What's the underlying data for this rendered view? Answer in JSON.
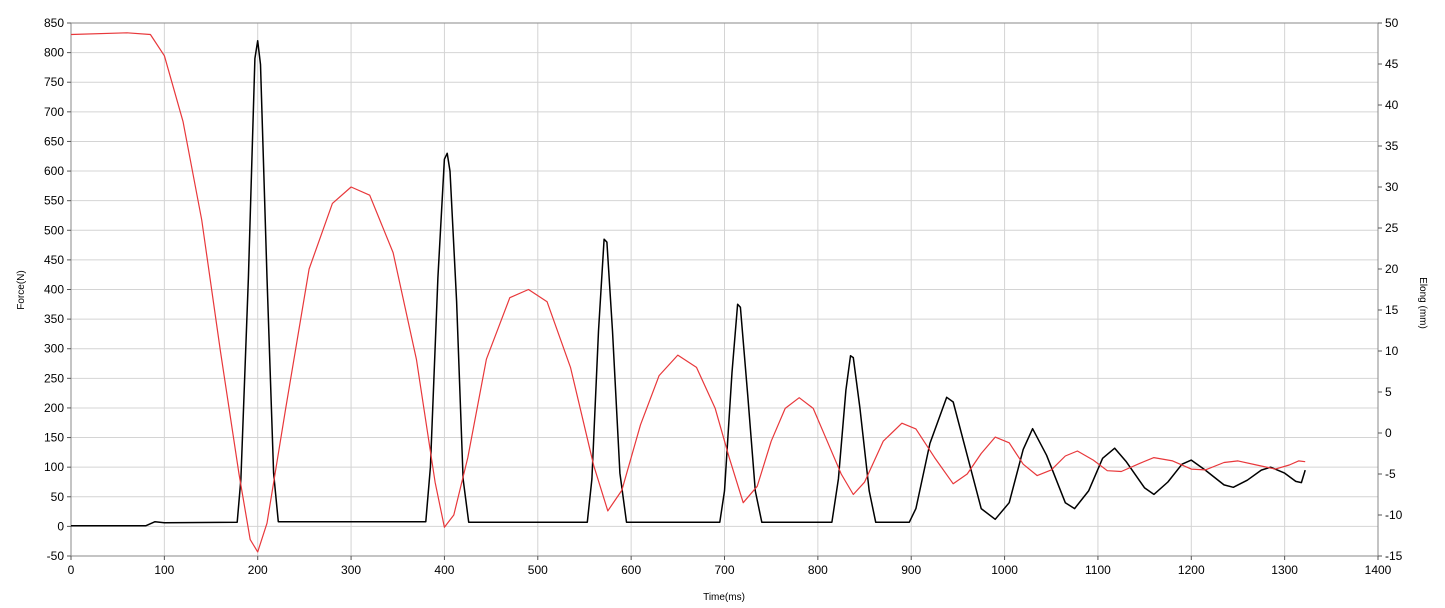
{
  "chart_data": {
    "type": "line",
    "xlabel": "Time(ms)",
    "ylabel_left": "Force(N)",
    "ylabel_right": "Elong (mm)",
    "xlim": [
      0,
      1400
    ],
    "ylim_left": [
      -50,
      850
    ],
    "ylim_right": [
      -15,
      50
    ],
    "x_ticks": [
      0,
      100,
      200,
      300,
      400,
      500,
      600,
      700,
      800,
      900,
      1000,
      1100,
      1200,
      1300,
      1400
    ],
    "y_left_ticks": [
      -50,
      0,
      50,
      100,
      150,
      200,
      250,
      300,
      350,
      400,
      450,
      500,
      550,
      600,
      650,
      700,
      750,
      800,
      850
    ],
    "y_right_ticks": [
      -15,
      -10,
      -5,
      0,
      5,
      10,
      15,
      20,
      25,
      30,
      35,
      40,
      45,
      50
    ],
    "grid": true,
    "series": [
      {
        "axis": "left",
        "color": "#000000",
        "points": [
          [
            0,
            1
          ],
          [
            80,
            1
          ],
          [
            90,
            8
          ],
          [
            100,
            6
          ],
          [
            178,
            7
          ],
          [
            182,
            80
          ],
          [
            190,
            420
          ],
          [
            197,
            790
          ],
          [
            200,
            820
          ],
          [
            203,
            780
          ],
          [
            210,
            420
          ],
          [
            217,
            90
          ],
          [
            222,
            8
          ],
          [
            380,
            8
          ],
          [
            385,
            100
          ],
          [
            393,
            420
          ],
          [
            400,
            620
          ],
          [
            403,
            630
          ],
          [
            406,
            600
          ],
          [
            413,
            380
          ],
          [
            420,
            80
          ],
          [
            426,
            7
          ],
          [
            553,
            7
          ],
          [
            558,
            80
          ],
          [
            565,
            330
          ],
          [
            571,
            485
          ],
          [
            574,
            480
          ],
          [
            580,
            330
          ],
          [
            588,
            90
          ],
          [
            595,
            7
          ],
          [
            695,
            7
          ],
          [
            700,
            60
          ],
          [
            708,
            260
          ],
          [
            714,
            375
          ],
          [
            717,
            370
          ],
          [
            725,
            220
          ],
          [
            733,
            60
          ],
          [
            740,
            7
          ],
          [
            815,
            7
          ],
          [
            822,
            80
          ],
          [
            830,
            230
          ],
          [
            835,
            288
          ],
          [
            838,
            285
          ],
          [
            845,
            200
          ],
          [
            855,
            60
          ],
          [
            862,
            7
          ],
          [
            898,
            7
          ],
          [
            905,
            30
          ],
          [
            920,
            140
          ],
          [
            938,
            218
          ],
          [
            945,
            210
          ],
          [
            960,
            120
          ],
          [
            975,
            30
          ],
          [
            990,
            12
          ],
          [
            1005,
            40
          ],
          [
            1020,
            130
          ],
          [
            1030,
            165
          ],
          [
            1045,
            120
          ],
          [
            1065,
            40
          ],
          [
            1075,
            30
          ],
          [
            1090,
            60
          ],
          [
            1105,
            115
          ],
          [
            1118,
            132
          ],
          [
            1130,
            110
          ],
          [
            1150,
            65
          ],
          [
            1160,
            54
          ],
          [
            1175,
            75
          ],
          [
            1190,
            105
          ],
          [
            1200,
            112
          ],
          [
            1215,
            95
          ],
          [
            1235,
            70
          ],
          [
            1245,
            66
          ],
          [
            1260,
            78
          ],
          [
            1275,
            95
          ],
          [
            1285,
            100
          ],
          [
            1300,
            90
          ],
          [
            1312,
            76
          ],
          [
            1318,
            74
          ],
          [
            1322,
            95
          ]
        ]
      },
      {
        "axis": "right",
        "color": "#e8383b",
        "points": [
          [
            0,
            48.6
          ],
          [
            60,
            48.8
          ],
          [
            85,
            48.6
          ],
          [
            100,
            46
          ],
          [
            120,
            38
          ],
          [
            140,
            26
          ],
          [
            160,
            10
          ],
          [
            180,
            -5
          ],
          [
            192,
            -13
          ],
          [
            200,
            -14.5
          ],
          [
            210,
            -11
          ],
          [
            230,
            3
          ],
          [
            255,
            20
          ],
          [
            280,
            28
          ],
          [
            300,
            30
          ],
          [
            320,
            29
          ],
          [
            345,
            22
          ],
          [
            370,
            9
          ],
          [
            390,
            -6
          ],
          [
            400,
            -11.5
          ],
          [
            410,
            -10
          ],
          [
            425,
            -3
          ],
          [
            445,
            9
          ],
          [
            470,
            16.5
          ],
          [
            490,
            17.5
          ],
          [
            510,
            16
          ],
          [
            535,
            8
          ],
          [
            560,
            -4
          ],
          [
            575,
            -9.5
          ],
          [
            590,
            -7
          ],
          [
            610,
            1
          ],
          [
            630,
            7
          ],
          [
            650,
            9.5
          ],
          [
            670,
            8
          ],
          [
            690,
            3
          ],
          [
            705,
            -3
          ],
          [
            720,
            -8.5
          ],
          [
            735,
            -6.5
          ],
          [
            750,
            -1
          ],
          [
            765,
            3
          ],
          [
            780,
            4.3
          ],
          [
            795,
            3
          ],
          [
            810,
            -1
          ],
          [
            825,
            -5
          ],
          [
            838,
            -7.5
          ],
          [
            850,
            -6
          ],
          [
            870,
            -1
          ],
          [
            890,
            1.2
          ],
          [
            905,
            0.5
          ],
          [
            925,
            -3
          ],
          [
            945,
            -6.2
          ],
          [
            960,
            -5
          ],
          [
            975,
            -2.5
          ],
          [
            990,
            -0.5
          ],
          [
            1005,
            -1.2
          ],
          [
            1020,
            -3.8
          ],
          [
            1035,
            -5.2
          ],
          [
            1050,
            -4.5
          ],
          [
            1065,
            -2.8
          ],
          [
            1078,
            -2.2
          ],
          [
            1095,
            -3.3
          ],
          [
            1110,
            -4.6
          ],
          [
            1125,
            -4.7
          ],
          [
            1145,
            -3.7
          ],
          [
            1160,
            -3.0
          ],
          [
            1180,
            -3.4
          ],
          [
            1200,
            -4.4
          ],
          [
            1215,
            -4.5
          ],
          [
            1235,
            -3.6
          ],
          [
            1250,
            -3.4
          ],
          [
            1270,
            -3.9
          ],
          [
            1290,
            -4.4
          ],
          [
            1305,
            -3.9
          ],
          [
            1315,
            -3.4
          ],
          [
            1322,
            -3.5
          ]
        ]
      }
    ]
  }
}
